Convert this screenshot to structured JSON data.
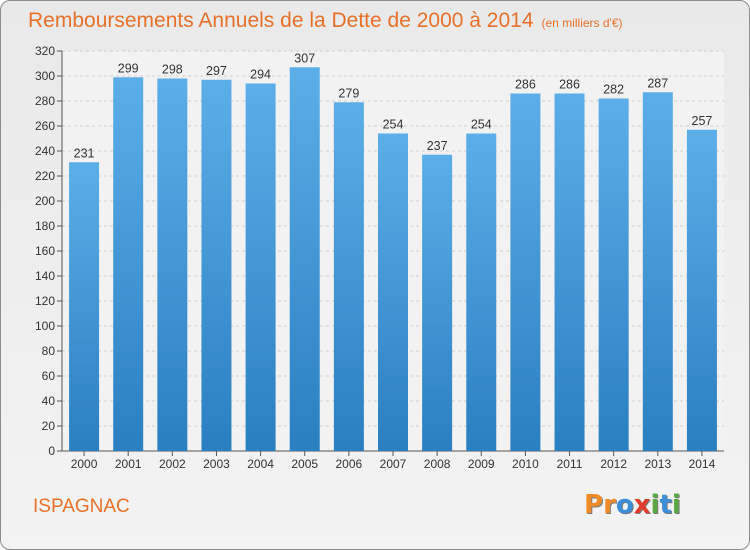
{
  "title": "Remboursements Annuels de la Dette de 2000 à 2014",
  "subtitle": "(en milliers d'€)",
  "commune": "ISPAGNAC",
  "brand": {
    "text": "Proxiti",
    "letters": [
      "P",
      "r",
      "o",
      "x",
      "i",
      "t",
      "i"
    ],
    "letter_colors": [
      "#f08c28",
      "#f08c28",
      "#3a8fd8",
      "#e53b2c",
      "#5aa842",
      "#3a8fd8",
      "#5aa842"
    ]
  },
  "colors": {
    "title": "#e8712a",
    "bar_light": "#5caee8",
    "bar_dark": "#2a7fc1"
  },
  "chart_data": {
    "type": "bar",
    "title": "Remboursements Annuels de la Dette de 2000 à 2014",
    "subtitle": "(en milliers d'€)",
    "categories": [
      "2000",
      "2001",
      "2002",
      "2003",
      "2004",
      "2005",
      "2006",
      "2007",
      "2008",
      "2009",
      "2010",
      "2011",
      "2012",
      "2013",
      "2014"
    ],
    "values": [
      231,
      299,
      298,
      297,
      294,
      307,
      279,
      254,
      237,
      254,
      286,
      286,
      282,
      287,
      257
    ],
    "ylim": [
      0,
      320
    ],
    "yticks": [
      0,
      20,
      40,
      60,
      80,
      100,
      120,
      140,
      160,
      180,
      200,
      220,
      240,
      260,
      280,
      300,
      320
    ],
    "grid": true,
    "xlabel": "",
    "ylabel": ""
  }
}
